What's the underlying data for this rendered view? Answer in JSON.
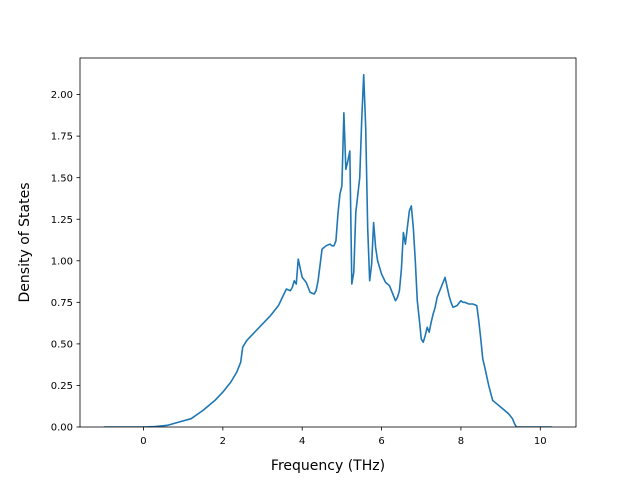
{
  "chart_data": {
    "type": "line",
    "title": "",
    "xlabel": "Frequency (THz)",
    "ylabel": "Density of States",
    "xlim": [
      -1.6,
      10.9
    ],
    "ylim": [
      0.0,
      2.22
    ],
    "xticks": [
      0,
      2,
      4,
      6,
      8,
      10
    ],
    "xtick_labels": [
      "0",
      "2",
      "4",
      "6",
      "8",
      "10"
    ],
    "yticks": [
      0.0,
      0.25,
      0.5,
      0.75,
      1.0,
      1.25,
      1.5,
      1.75,
      2.0
    ],
    "ytick_labels": [
      "0.00",
      "0.25",
      "0.50",
      "0.75",
      "1.00",
      "1.25",
      "1.50",
      "1.75",
      "2.00"
    ],
    "grid": false,
    "line_color": "#1f77b4",
    "series": [
      {
        "x": [
          -1.0,
          -0.5,
          0.0,
          0.3,
          0.6,
          0.9,
          1.2,
          1.5,
          1.8,
          2.0,
          2.2,
          2.35,
          2.45,
          2.5,
          2.6,
          2.8,
          3.0,
          3.2,
          3.4,
          3.5,
          3.6,
          3.7,
          3.75,
          3.8,
          3.85,
          3.9,
          4.0,
          4.1,
          4.2,
          4.3,
          4.35,
          4.4,
          4.5,
          4.6,
          4.7,
          4.75,
          4.8,
          4.85,
          4.9,
          4.95,
          5.0,
          5.05,
          5.1,
          5.15,
          5.2,
          5.25,
          5.3,
          5.35,
          5.45,
          5.5,
          5.55,
          5.6,
          5.65,
          5.7,
          5.75,
          5.8,
          5.85,
          5.9,
          6.0,
          6.1,
          6.2,
          6.3,
          6.35,
          6.4,
          6.45,
          6.5,
          6.55,
          6.6,
          6.65,
          6.7,
          6.75,
          6.8,
          6.85,
          6.9,
          6.95,
          7.0,
          7.05,
          7.1,
          7.15,
          7.2,
          7.25,
          7.3,
          7.35,
          7.4,
          7.5,
          7.6,
          7.7,
          7.75,
          7.8,
          7.9,
          8.0,
          8.05,
          8.1,
          8.2,
          8.3,
          8.4,
          8.45,
          8.5,
          8.55,
          8.6,
          8.7,
          8.8,
          8.85,
          9.0,
          9.2,
          9.3,
          9.35,
          9.4,
          10.0,
          10.3
        ],
        "y": [
          0.0,
          0.0,
          0.0,
          0.003,
          0.01,
          0.03,
          0.05,
          0.1,
          0.16,
          0.21,
          0.27,
          0.33,
          0.39,
          0.48,
          0.52,
          0.57,
          0.62,
          0.67,
          0.73,
          0.78,
          0.83,
          0.82,
          0.84,
          0.88,
          0.86,
          1.01,
          0.9,
          0.87,
          0.81,
          0.8,
          0.82,
          0.88,
          1.07,
          1.09,
          1.1,
          1.09,
          1.09,
          1.12,
          1.28,
          1.4,
          1.45,
          1.89,
          1.55,
          1.6,
          1.66,
          0.86,
          0.93,
          1.29,
          1.5,
          1.85,
          2.12,
          1.8,
          1.2,
          0.88,
          0.98,
          1.23,
          1.08,
          1.0,
          0.92,
          0.87,
          0.85,
          0.79,
          0.76,
          0.78,
          0.82,
          0.95,
          1.17,
          1.1,
          1.2,
          1.3,
          1.33,
          1.2,
          1.0,
          0.76,
          0.65,
          0.53,
          0.51,
          0.55,
          0.6,
          0.57,
          0.63,
          0.68,
          0.72,
          0.78,
          0.84,
          0.9,
          0.79,
          0.75,
          0.72,
          0.73,
          0.76,
          0.75,
          0.75,
          0.74,
          0.74,
          0.73,
          0.64,
          0.53,
          0.41,
          0.36,
          0.25,
          0.16,
          0.15,
          0.12,
          0.08,
          0.05,
          0.02,
          0.0,
          0.0,
          0.0
        ]
      }
    ]
  }
}
